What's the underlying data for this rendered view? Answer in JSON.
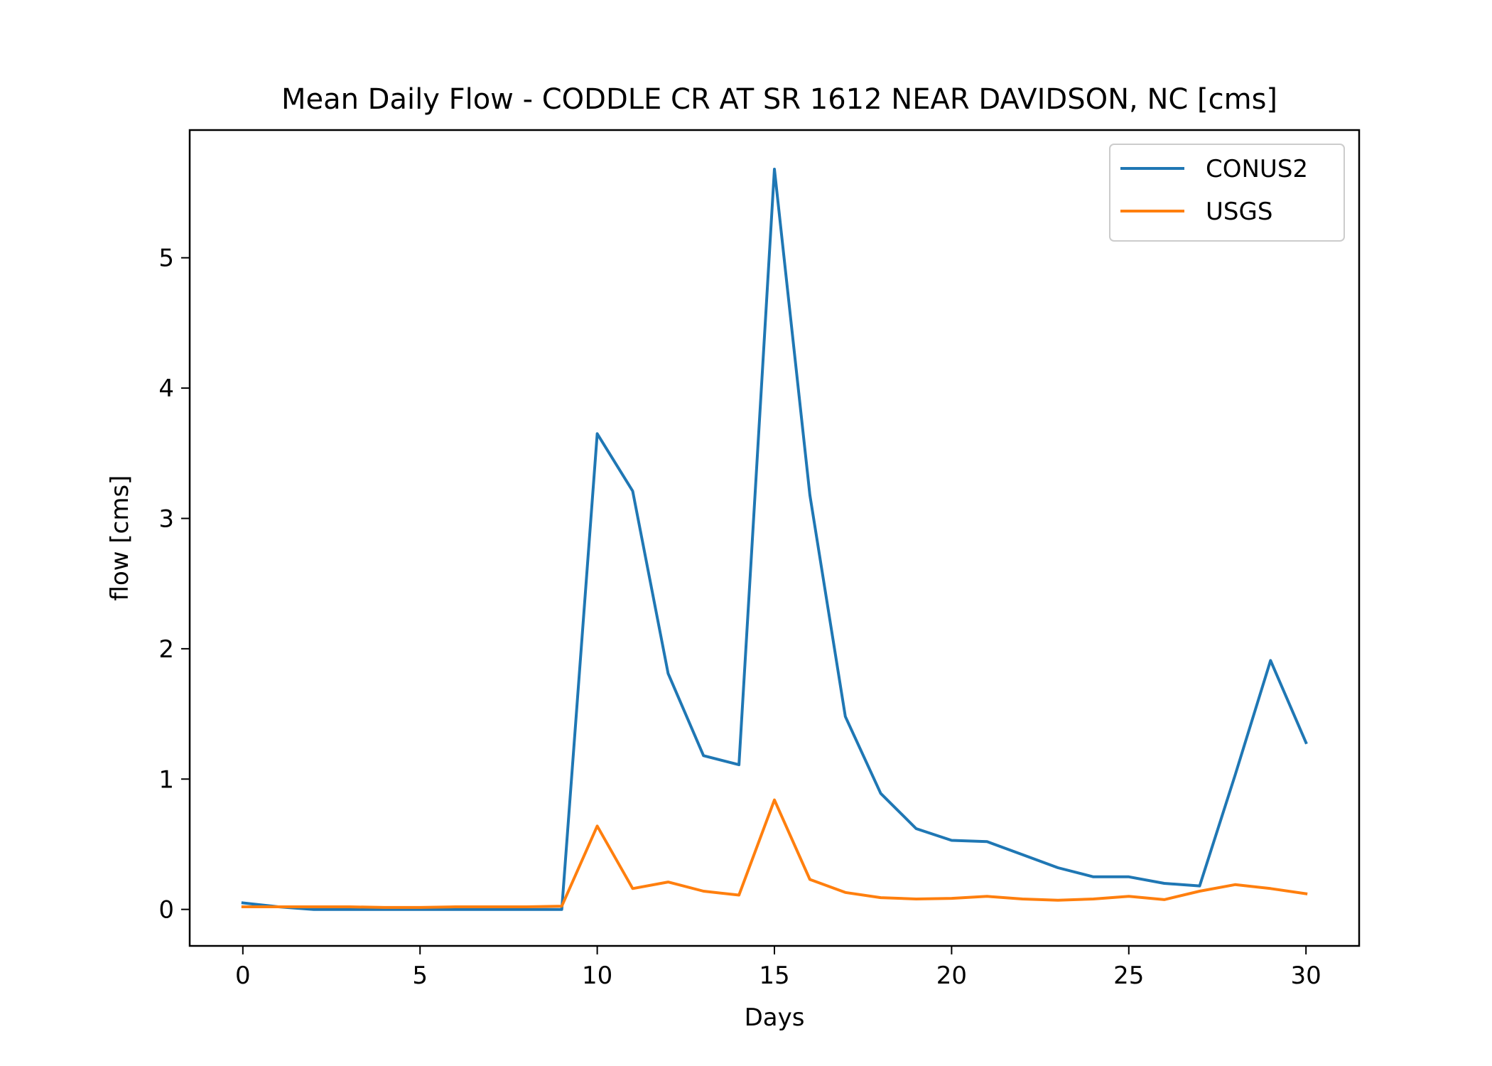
{
  "chart_data": {
    "type": "line",
    "title": "Mean Daily Flow - CODDLE CR AT SR 1612 NEAR DAVIDSON, NC [cms]",
    "xlabel": "Days",
    "ylabel": "flow [cms]",
    "xlim": [
      -1.5,
      31.5
    ],
    "ylim": [
      -0.28,
      5.98
    ],
    "xticks": [
      0,
      5,
      10,
      15,
      20,
      25,
      30
    ],
    "yticks": [
      0,
      1,
      2,
      3,
      4,
      5
    ],
    "grid": false,
    "legend_position": "top-right",
    "x": [
      0,
      1,
      2,
      3,
      4,
      5,
      6,
      7,
      8,
      9,
      10,
      11,
      12,
      13,
      14,
      15,
      16,
      17,
      18,
      19,
      20,
      21,
      22,
      23,
      24,
      25,
      26,
      27,
      28,
      29,
      30
    ],
    "series": [
      {
        "name": "CONUS2",
        "color": "#1f77b4",
        "values": [
          0.05,
          0.02,
          0.0,
          0.0,
          0.0,
          0.0,
          0.0,
          0.0,
          0.0,
          0.0,
          3.65,
          3.21,
          1.81,
          1.18,
          1.11,
          5.68,
          3.18,
          1.48,
          0.89,
          0.62,
          0.53,
          0.52,
          0.42,
          0.32,
          0.25,
          0.25,
          0.2,
          0.18,
          1.03,
          1.91,
          1.28
        ]
      },
      {
        "name": "USGS",
        "color": "#ff7f0e",
        "values": [
          0.02,
          0.02,
          0.02,
          0.02,
          0.015,
          0.015,
          0.02,
          0.02,
          0.02,
          0.025,
          0.64,
          0.16,
          0.21,
          0.14,
          0.11,
          0.84,
          0.23,
          0.13,
          0.09,
          0.08,
          0.085,
          0.1,
          0.08,
          0.07,
          0.08,
          0.1,
          0.075,
          0.14,
          0.19,
          0.16,
          0.12
        ]
      }
    ]
  }
}
